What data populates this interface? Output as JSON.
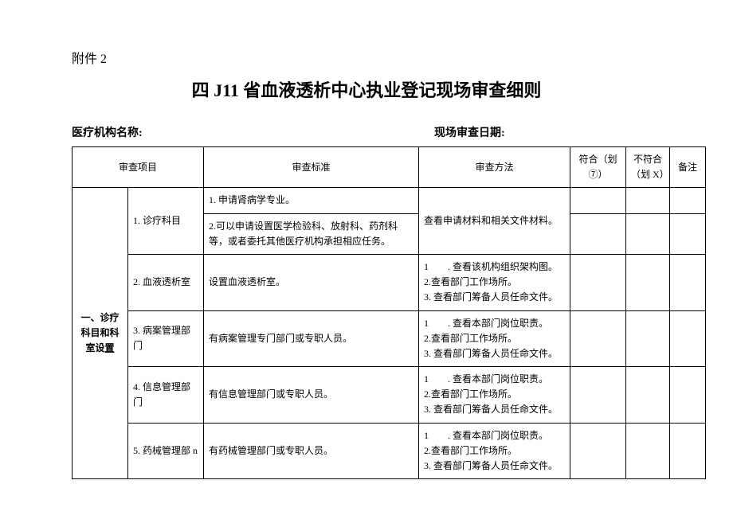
{
  "attachment": "附件 2",
  "title": "四 J11 省血液透析中心执业登记现场审查细则",
  "header": {
    "org_label": "医疗机构名称:",
    "date_label": "现场审查日期:"
  },
  "columns": {
    "inspect_item": "审查项目",
    "standard": "审查标准",
    "method": "审查方法",
    "pass": "符合（划⑦）",
    "fail": "不符合（划 X）",
    "note": "备注"
  },
  "category": "一、诊疗科目和科室设置",
  "rows": [
    {
      "item": "1. 诊疗科目",
      "standards": [
        "1. 申请肾病学专业。",
        "2.可以申请设置医学检验科、放射科、药剂科等，或者委托其他医疗机构承担相应任务。"
      ],
      "method": "查看申请材料和相关文件材料。"
    },
    {
      "item": "2. 血液透析室",
      "standards": [
        "设置血液透析室。"
      ],
      "method": "1　　. 查看该机构组织架构图。\n2.查看部门工作场所。\n3. 查看部门筹备人员任命文件。"
    },
    {
      "item": "3. 病案管理部门",
      "standards": [
        "有病案管理专门部门或专职人员。"
      ],
      "method": "1　　. 查看本部门岗位职责。\n2.查看部门工作场所。\n3. 查看部门筹备人员任命文件。"
    },
    {
      "item": "4. 信息管理部门",
      "standards": [
        "有信息管理部门或专职人员。"
      ],
      "method": "1　　. 查看本部门岗位职责。\n2.查看部门工作场所。\n3. 查看部门筹备人员任命文件。"
    },
    {
      "item": "5. 药械管理部 n",
      "standards": [
        "有药械管理部门或专职人员。"
      ],
      "method": "1　　. 查看本部门岗位职责。\n2.查看部门工作场所。\n3. 查看部门筹备人员任命文件。"
    }
  ]
}
